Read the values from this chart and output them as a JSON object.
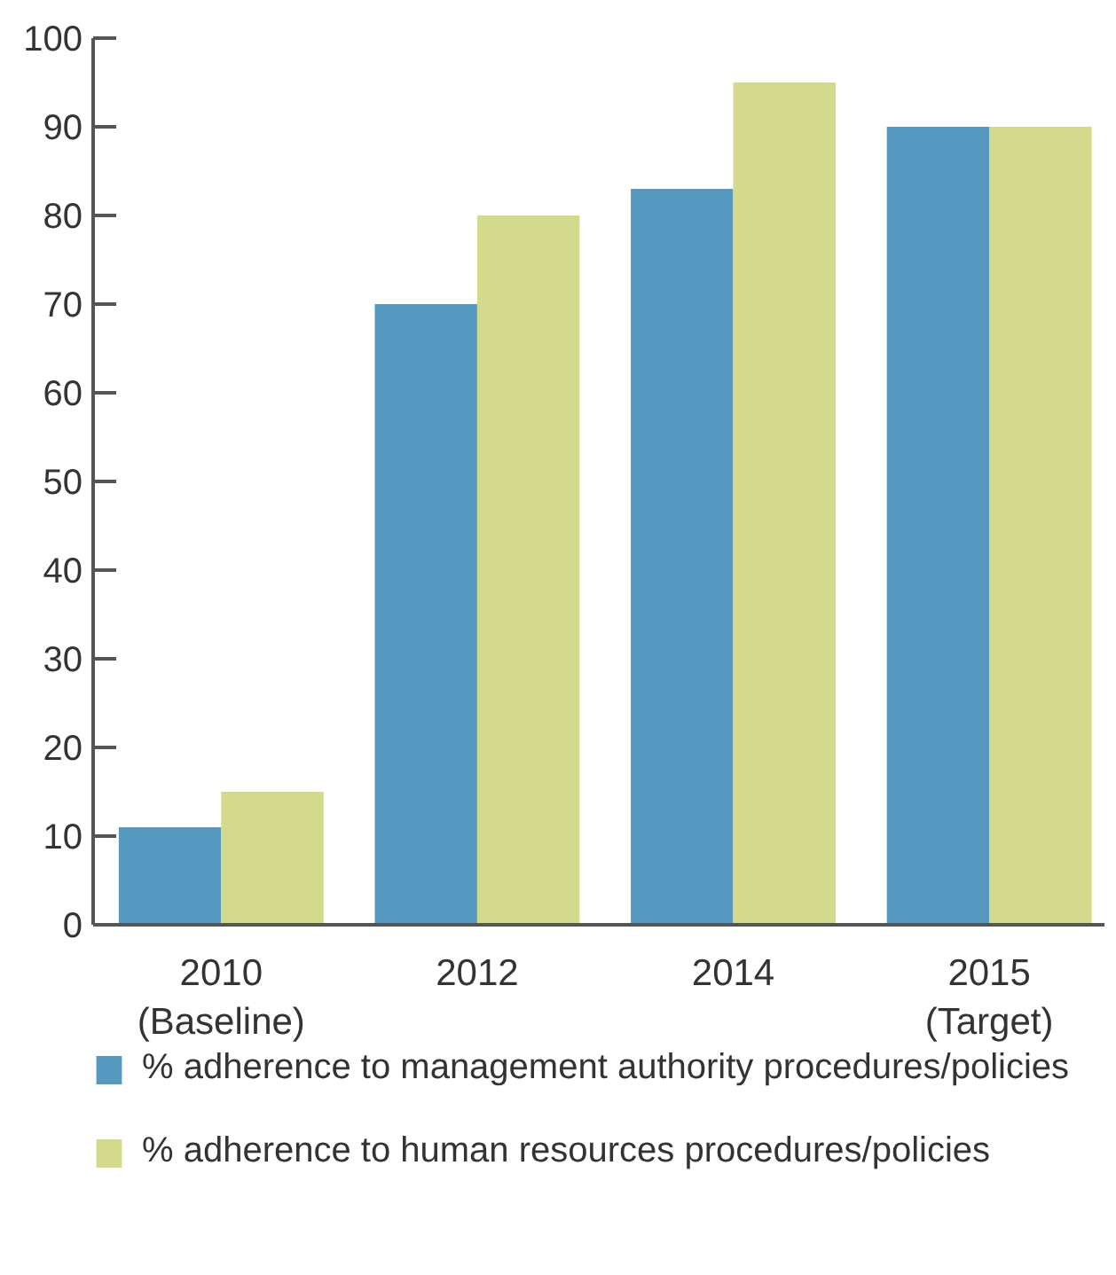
{
  "chart_data": {
    "type": "bar",
    "categories": [
      "2010\n(Baseline)",
      "2012",
      "2014",
      "2015\n(Target)"
    ],
    "series": [
      {
        "name": "% adherence to management authority procedures/policies",
        "color": "#5599c0",
        "values": [
          11,
          70,
          83,
          90
        ]
      },
      {
        "name": "% adherence to human resources procedures/policies",
        "color": "#d4da8c",
        "values": [
          15,
          80,
          95,
          90
        ]
      }
    ],
    "ylim": [
      0,
      100
    ],
    "yticks": [
      0,
      10,
      20,
      30,
      40,
      50,
      60,
      70,
      80,
      90,
      100
    ],
    "grid": false,
    "legend": "bottom"
  }
}
